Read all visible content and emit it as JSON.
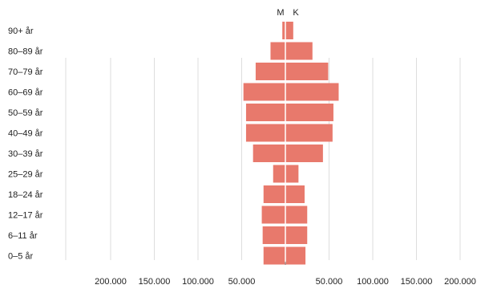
{
  "chart_data": {
    "type": "bar",
    "orientation": "horizontal-population-pyramid",
    "title": "",
    "xlabel": "",
    "ylabel": "",
    "xlim": [
      -250000,
      250000
    ],
    "grid": true,
    "legend": "none",
    "series_labels": {
      "left": "M",
      "right": "K"
    },
    "categories": [
      "90+ år",
      "80–89 år",
      "70–79 år",
      "60–69 år",
      "50–59 år",
      "40–49 år",
      "30–39 år",
      "25–29 år",
      "18–24 år",
      "12–17 år",
      "6–11 år",
      "0–5 år"
    ],
    "series": [
      {
        "values": [
          3500,
          17000,
          34000,
          48000,
          45000,
          45000,
          37000,
          14000,
          25000,
          27000,
          26000,
          25000
        ]
      },
      {
        "values": [
          9000,
          31000,
          49000,
          61000,
          55000,
          54000,
          43000,
          15000,
          22000,
          25000,
          25000,
          23000
        ]
      }
    ],
    "x_ticks": [
      {
        "value": -200000,
        "label": "200.000"
      },
      {
        "value": -150000,
        "label": "150.000"
      },
      {
        "value": -100000,
        "label": "100.000"
      },
      {
        "value": -50000,
        "label": "50.000"
      },
      {
        "value": 50000,
        "label": "50.000"
      },
      {
        "value": 100000,
        "label": "100.000"
      },
      {
        "value": 150000,
        "label": "150.000"
      },
      {
        "value": 200000,
        "label": "200.000"
      }
    ],
    "colors": {
      "bar": "#e8796c",
      "grid": "#dddddd",
      "center": "#ffffff"
    }
  }
}
